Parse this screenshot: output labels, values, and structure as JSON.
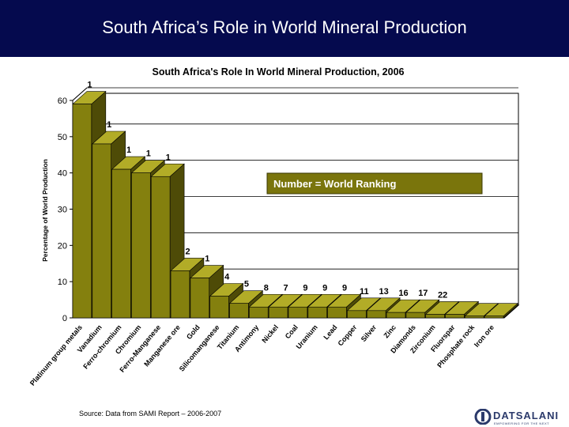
{
  "slide": {
    "title": "South Africa’s Role in World Mineral Production"
  },
  "source": "Source: Data from SAMI Report – 2006-2007",
  "logo": {
    "name": "DATSALANI",
    "tagline": "EMPOWERING FOR THE NEXT"
  },
  "colors": {
    "banner": "#050a4e",
    "bar_front": "#84800e",
    "bar_top": "#b2ac27",
    "bar_side": "#4e4b07",
    "legend_box": "#7a750c"
  },
  "chart_data": {
    "type": "bar",
    "title": "South Africa's Role In World Mineral Production, 2006",
    "ylabel": "Percentage of World Production",
    "xlabel": "",
    "ylim": [
      0,
      60
    ],
    "yticks": [
      0,
      10,
      20,
      30,
      40,
      50,
      60
    ],
    "legend_note": "Number = World Ranking",
    "categories": [
      "Platinum group metals",
      "Vanadium",
      "Ferro-chromium",
      "Chromium",
      "Ferro-Manganese",
      "Manganese ore",
      "Gold",
      "Silicomanganese",
      "Titanium",
      "Antimony",
      "Nickel",
      "Coal",
      "Uranium",
      "Lead",
      "Copper",
      "Silver",
      "Zinc",
      "Diamonds",
      "Zirconium",
      "Fluorspar",
      "Phosphate rock",
      "Iron ore"
    ],
    "values": [
      59,
      48,
      41,
      40,
      39,
      13,
      11,
      6,
      4,
      3,
      3,
      3,
      3,
      3,
      2,
      2,
      1.5,
      1.5,
      1,
      1,
      0.5,
      0.5
    ],
    "rankings": [
      "1",
      "1",
      "1",
      "1",
      "1",
      "2",
      "1",
      "4",
      "5",
      "8",
      "7",
      "9",
      "9",
      "9",
      "11",
      "13",
      "16",
      "17",
      "22",
      "",
      "",
      ""
    ]
  }
}
